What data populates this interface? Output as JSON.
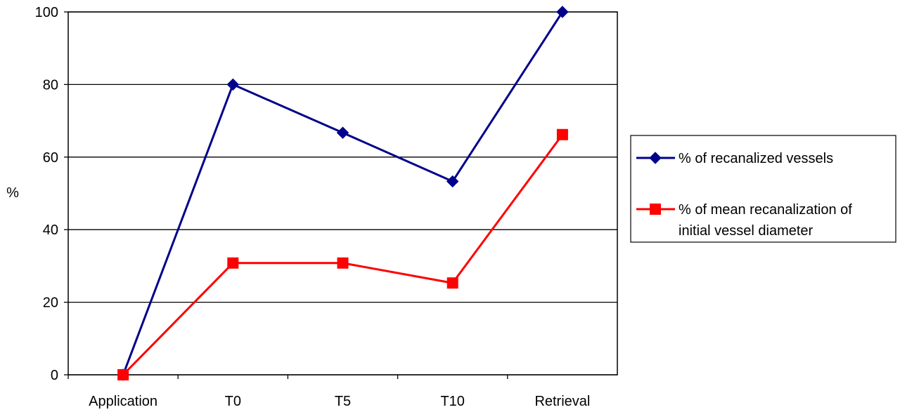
{
  "chart_data": {
    "type": "line",
    "title": "",
    "xlabel": "",
    "ylabel": "%",
    "categories": [
      "Application",
      "T0",
      "T5",
      "T10",
      "Retrieval"
    ],
    "ylim": [
      0,
      100
    ],
    "yticks": [
      0,
      20,
      40,
      60,
      80,
      100
    ],
    "grid": true,
    "legend_position": "right",
    "series": [
      {
        "name": "% of recanalized vessels",
        "legend_lines": [
          "% of recanalized vessels"
        ],
        "values": [
          0,
          80,
          66.7,
          53.3,
          100
        ],
        "color": "#00008B",
        "marker": "diamond"
      },
      {
        "name": "% of mean recanalization of initial vessel diameter",
        "legend_lines": [
          "% of mean recanalization of",
          "initial vessel diameter"
        ],
        "values": [
          0,
          30.8,
          30.8,
          25.3,
          66.2
        ],
        "color": "#FF0000",
        "marker": "square"
      }
    ]
  }
}
